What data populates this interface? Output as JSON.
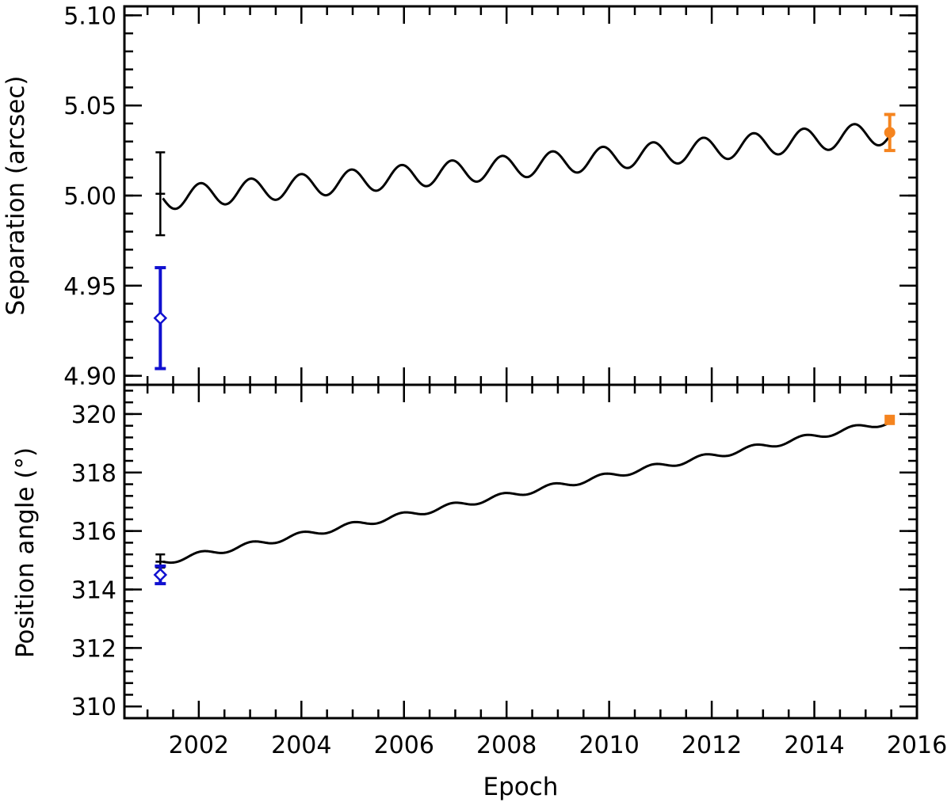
{
  "chart_data": [
    {
      "type": "line",
      "panel": "top",
      "ylabel": "Separation (arcsec)",
      "xlabel": "",
      "xlim": [
        2000.55,
        2016.0
      ],
      "ylim": [
        4.895,
        5.105
      ],
      "yticks": [
        4.9,
        4.95,
        5.0,
        5.05,
        5.1
      ],
      "ytick_labels": [
        "4.90",
        "4.95",
        "5.00",
        "5.05",
        "5.10"
      ],
      "xticks": [
        2002,
        2004,
        2006,
        2008,
        2010,
        2012,
        2014,
        2016
      ],
      "model": {
        "start": 2001.3,
        "end": 2015.5,
        "y_start": 4.9985,
        "y_end": 5.035,
        "amplitude": 0.0065,
        "period": 0.98
      },
      "points": [
        {
          "marker": "tick",
          "color": "#000000",
          "x": 2001.25,
          "y": 5.001,
          "ylow": 4.978,
          "yhigh": 5.024
        },
        {
          "marker": "diamond",
          "color": "#1010d0",
          "x": 2001.25,
          "y": 4.932,
          "ylow": 4.904,
          "yhigh": 4.96
        },
        {
          "marker": "circle",
          "color": "#f5841f",
          "x": 2015.47,
          "y": 5.035,
          "ylow": 5.025,
          "yhigh": 5.045
        }
      ]
    },
    {
      "type": "line",
      "panel": "bottom",
      "ylabel": "Position angle (°)",
      "xlabel": "Epoch",
      "xlim": [
        2000.55,
        2016.0
      ],
      "ylim": [
        309.6,
        321.0
      ],
      "yticks": [
        310,
        312,
        314,
        316,
        318,
        320
      ],
      "ytick_labels": [
        "310",
        "312",
        "314",
        "316",
        "318",
        "320"
      ],
      "xticks": [
        2002,
        2004,
        2006,
        2008,
        2010,
        2012,
        2014,
        2016
      ],
      "xtick_labels": [
        "2002",
        "2004",
        "2006",
        "2008",
        "2010",
        "2012",
        "2014",
        "2016"
      ],
      "model": {
        "start": 2001.3,
        "end": 2015.5,
        "y_start": 314.95,
        "y_end": 319.75,
        "amplitude": 0.1,
        "period": 0.98
      },
      "points": [
        {
          "marker": "tick",
          "color": "#000000",
          "x": 2001.25,
          "y": 314.95,
          "ylow": 314.75,
          "yhigh": 315.2
        },
        {
          "marker": "diamond",
          "color": "#1010d0",
          "x": 2001.25,
          "y": 314.5,
          "ylow": 314.2,
          "yhigh": 314.8
        },
        {
          "marker": "square",
          "color": "#f5841f",
          "x": 2015.47,
          "y": 319.8,
          "ylow": 319.8,
          "yhigh": 319.8
        }
      ]
    }
  ]
}
